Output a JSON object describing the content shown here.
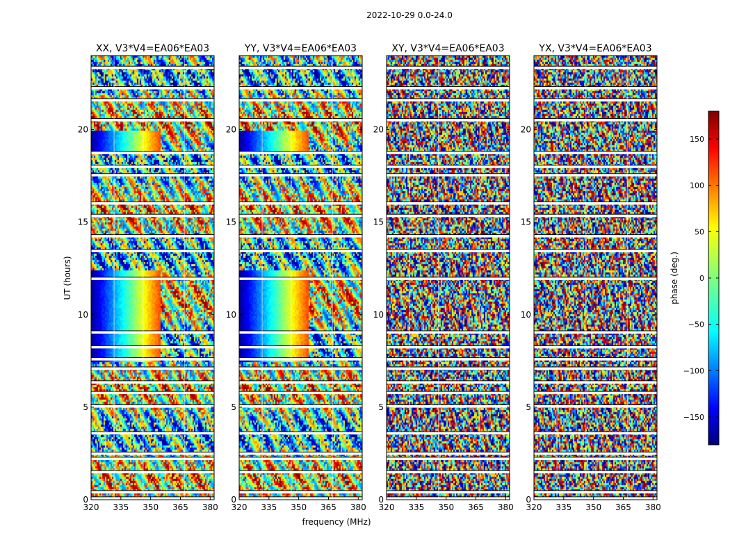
{
  "figure": {
    "suptitle": "2022-10-29 0.0-24.0",
    "xlabel": "frequency (MHz)",
    "ylabel": "UT (hours)"
  },
  "colorbar": {
    "label": "phase (deg.)",
    "ticks": [
      -150,
      -100,
      -50,
      0,
      50,
      100,
      150
    ],
    "tick_labels": [
      "−150",
      "−100",
      "−50",
      "0",
      "50",
      "100",
      "150"
    ],
    "range": [
      -180,
      180
    ],
    "colormap": "jet",
    "colors": [
      "#00007f",
      "#0000ff",
      "#007fff",
      "#00ffff",
      "#7fff7f",
      "#ffff00",
      "#ff7f00",
      "#ff0000",
      "#7f0000"
    ]
  },
  "chart_data": [
    {
      "type": "heatmap",
      "title": "XX, V3*V4=EA06*EA03",
      "x_range": [
        320,
        382
      ],
      "y_range": [
        0,
        24
      ],
      "x_ticks": [
        320,
        335,
        350,
        365,
        380
      ],
      "y_ticks": [
        0,
        5,
        10,
        15,
        20
      ],
      "value": "phase (deg.)",
      "value_range": [
        -180,
        180
      ],
      "flagged_bands_ut": [
        0.08,
        0.42,
        1.5,
        2.22,
        2.5,
        3.6,
        5.05,
        5.78,
        6.35,
        7.1,
        7.6,
        8.25,
        9.05,
        11.95,
        13.45,
        14.25,
        15.35,
        16.02,
        17.55,
        18.0,
        18.75,
        20.52,
        21.6,
        22.25,
        23.35
      ],
      "flagged_freq_columns_mhz": [
        331.6,
        346.2,
        367.0
      ]
    },
    {
      "type": "heatmap",
      "title": "YY, V3*V4=EA06*EA03",
      "x_range": [
        320,
        382
      ],
      "y_range": [
        0,
        24
      ],
      "x_ticks": [
        320,
        335,
        350,
        365,
        380
      ],
      "y_ticks": [
        0,
        5,
        10,
        15,
        20
      ],
      "value": "phase (deg.)",
      "value_range": [
        -180,
        180
      ],
      "flagged_bands_ut": [
        0.08,
        0.42,
        1.5,
        2.22,
        2.5,
        3.6,
        5.05,
        5.78,
        6.35,
        7.1,
        7.6,
        8.25,
        9.05,
        11.95,
        13.45,
        14.25,
        15.35,
        16.02,
        17.55,
        18.0,
        18.75,
        20.52,
        21.6,
        22.25,
        23.35
      ],
      "flagged_freq_columns_mhz": [
        331.6,
        346.2,
        367.0
      ]
    },
    {
      "type": "heatmap",
      "title": "XY, V3*V4=EA06*EA03",
      "x_range": [
        320,
        382
      ],
      "y_range": [
        0,
        24
      ],
      "x_ticks": [
        320,
        335,
        350,
        365,
        380
      ],
      "y_ticks": [
        0,
        5,
        10,
        15,
        20
      ],
      "value": "phase (deg.)",
      "value_range": [
        -180,
        180
      ],
      "flagged_bands_ut": [
        0.08,
        0.42,
        1.5,
        2.22,
        2.5,
        3.6,
        5.05,
        5.78,
        6.35,
        7.1,
        7.6,
        8.25,
        9.05,
        11.95,
        13.45,
        14.25,
        15.35,
        16.02,
        17.55,
        18.0,
        18.75,
        20.52,
        21.6,
        22.25,
        23.35
      ],
      "flagged_freq_columns_mhz": [
        331.6,
        346.2,
        367.0
      ]
    },
    {
      "type": "heatmap",
      "title": "YX, V3*V4=EA06*EA03",
      "x_range": [
        320,
        382
      ],
      "y_range": [
        0,
        24
      ],
      "x_ticks": [
        320,
        335,
        350,
        365,
        380
      ],
      "y_ticks": [
        0,
        5,
        10,
        15,
        20
      ],
      "value": "phase (deg.)",
      "value_range": [
        -180,
        180
      ],
      "flagged_bands_ut": [
        0.08,
        0.42,
        1.5,
        2.22,
        2.5,
        3.6,
        5.05,
        5.78,
        6.35,
        7.1,
        7.6,
        8.25,
        9.05,
        11.95,
        13.45,
        14.25,
        15.35,
        16.02,
        17.55,
        18.0,
        18.75,
        20.52,
        21.6,
        22.25,
        23.35
      ],
      "flagged_freq_columns_mhz": [
        331.6,
        346.2,
        367.0
      ]
    }
  ]
}
